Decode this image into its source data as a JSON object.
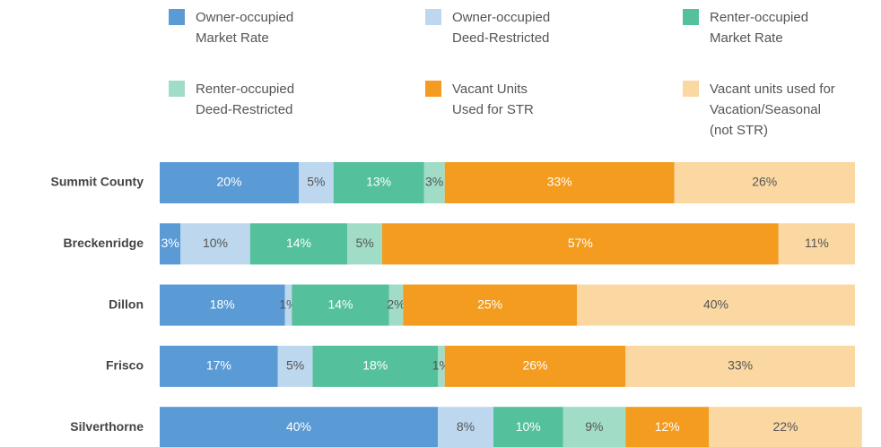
{
  "chart_data": {
    "type": "stacked_bar_horizontal",
    "categories": [
      "Summit County",
      "Breckenridge",
      "Dillon",
      "Frisco",
      "Silverthorne"
    ],
    "xlim": [
      0,
      100
    ],
    "series": [
      {
        "name": "Owner-occupied Market Rate",
        "color": "#5b9bd5",
        "label_color": "#ffffff",
        "values": [
          20,
          3,
          18,
          17,
          40
        ],
        "value_labels": [
          "20%",
          "3%",
          "18%",
          "17%",
          "40%"
        ]
      },
      {
        "name": "Owner-occupied Deed-Restricted",
        "color": "#bdd7ee",
        "label_color": "#555555",
        "values": [
          5,
          10,
          1,
          5,
          8
        ],
        "value_labels": [
          "5%",
          "10%",
          "1%",
          "5%",
          "8%"
        ]
      },
      {
        "name": "Renter-occupied Market Rate",
        "color": "#55c09c",
        "label_color": "#ffffff",
        "values": [
          13,
          14,
          14,
          18,
          10
        ],
        "value_labels": [
          "13%",
          "14%",
          "14%",
          "18%",
          "10%"
        ]
      },
      {
        "name": "Renter-occupied Deed-Restricted",
        "color": "#a0dcc6",
        "label_color": "#555555",
        "values": [
          3,
          5,
          2,
          1,
          9
        ],
        "value_labels": [
          "3%",
          "5%",
          "2%",
          "1%",
          "9%"
        ]
      },
      {
        "name": "Vacant Units Used for STR",
        "color": "#f39c1f",
        "label_color": "#ffffff",
        "values": [
          33,
          57,
          25,
          26,
          12
        ],
        "value_labels": [
          "33%",
          "57%",
          "25%",
          "26%",
          "12%"
        ]
      },
      {
        "name": "Vacant units used for Vacation/Seasonal (not STR)",
        "color": "#fbd7a2",
        "label_color": "#555555",
        "values": [
          26,
          11,
          40,
          33,
          22
        ],
        "value_labels": [
          "26%",
          "11%",
          "40%",
          "33%",
          "22%"
        ]
      }
    ],
    "legend": "top"
  }
}
